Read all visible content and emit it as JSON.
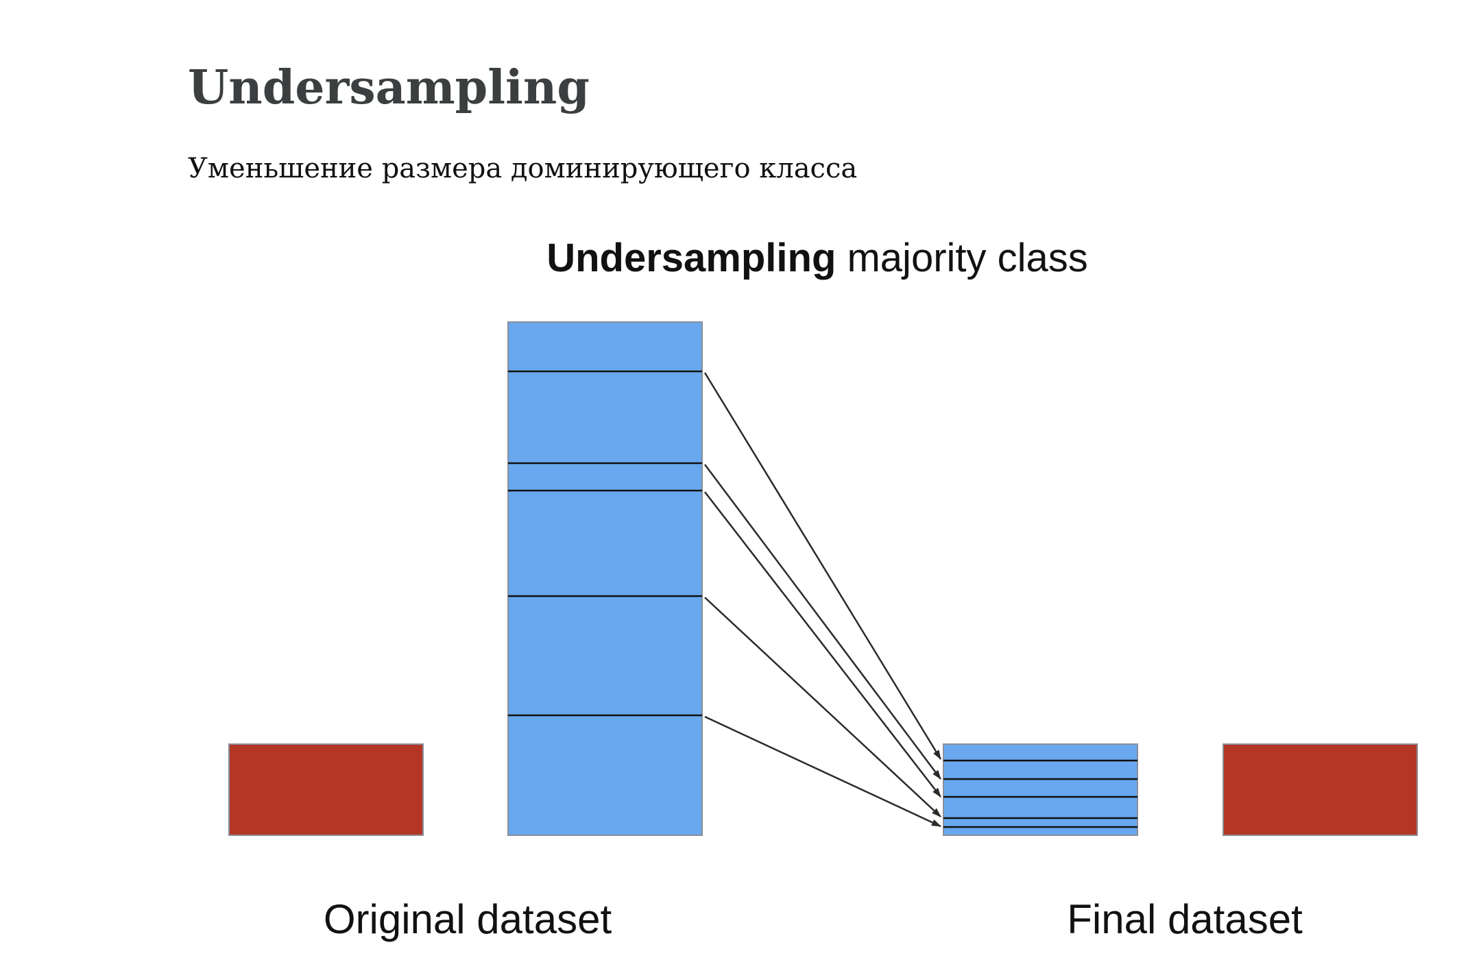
{
  "slide": {
    "title": "Undersampling",
    "subtitle": "Уменьшение размера доминирующего класса"
  },
  "diagram": {
    "heading_bold": "Undersampling",
    "heading_rest": " majority class",
    "left_label": "Original dataset",
    "right_label": "Final dataset",
    "sampled_rows": 5,
    "colors": {
      "majority": "#69a8ee",
      "minority": "#b43726",
      "border": "#8a8f99",
      "line": "#111111",
      "arrow": "#2a2a2a",
      "text": "#111111"
    }
  }
}
